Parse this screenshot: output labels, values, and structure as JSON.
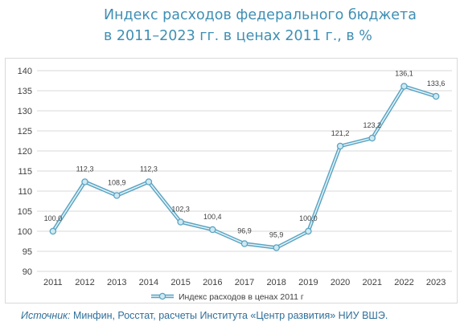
{
  "title_line1": "Индекс расходов федерального бюджета",
  "title_line2": "в 2011–2023 гг. в ценах 2011 г., в %",
  "source_label": "Источник:",
  "source_text": " Минфин, Росстат, расчеты Института «Центр развития» НИУ ВШЭ.",
  "chart_data": {
    "type": "line",
    "x": [
      "2011",
      "2012",
      "2013",
      "2014",
      "2015",
      "2016",
      "2017",
      "2018",
      "2019",
      "2020",
      "2021",
      "2022",
      "2023"
    ],
    "series": [
      {
        "name": "Индекс расходов в ценах 2011 г",
        "values": [
          100.0,
          112.3,
          108.9,
          112.3,
          102.3,
          100.4,
          96.9,
          95.9,
          100.0,
          121.2,
          123.2,
          136.1,
          133.6
        ],
        "labels": [
          "100,0",
          "112,3",
          "108,9",
          "112,3",
          "102,3",
          "100,4",
          "96,9",
          "95,9",
          "100,0",
          "121,2",
          "123,2",
          "136,1",
          "133,6"
        ]
      }
    ],
    "yticks": [
      "90",
      "95",
      "100",
      "105",
      "110",
      "115",
      "120",
      "125",
      "130",
      "135",
      "140"
    ],
    "ylim": [
      90,
      140
    ],
    "grid": "horizontal",
    "legend": "bottom",
    "colors": {
      "line_outer": "#5aa4c2",
      "line_inner": "#e3f1f7",
      "marker_fill": "#cfe8f1",
      "grid": "#d9d9d9",
      "text": "#404040"
    }
  }
}
